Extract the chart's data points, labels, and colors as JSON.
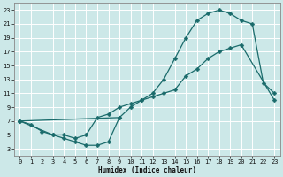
{
  "xlabel": "Humidex (Indice chaleur)",
  "bg_color": "#cce8e8",
  "grid_color": "#ffffff",
  "line_color": "#1a6b6b",
  "xlim": [
    -0.5,
    23.5
  ],
  "ylim": [
    2,
    24
  ],
  "xticks": [
    0,
    1,
    2,
    3,
    4,
    5,
    6,
    7,
    8,
    9,
    10,
    11,
    12,
    13,
    14,
    15,
    16,
    17,
    18,
    19,
    20,
    21,
    22,
    23
  ],
  "yticks": [
    3,
    5,
    7,
    9,
    11,
    13,
    15,
    17,
    19,
    21,
    23
  ],
  "curve_top_x": [
    0,
    9,
    10,
    11,
    12,
    13,
    14,
    15,
    16,
    17,
    18,
    19,
    20,
    21,
    22,
    23
  ],
  "curve_top_y": [
    7,
    7.5,
    9,
    10,
    11,
    13,
    16,
    19,
    21.5,
    22.5,
    23,
    22.5,
    21.5,
    21,
    12.5,
    11
  ],
  "curve_mid_x": [
    0,
    3,
    4,
    5,
    6,
    7,
    8,
    9,
    10,
    11,
    12,
    13,
    14,
    15,
    16,
    17,
    18,
    19,
    20,
    23
  ],
  "curve_mid_y": [
    7,
    5,
    5,
    4.5,
    5,
    7.5,
    8,
    9,
    9.5,
    10,
    10.5,
    11,
    11.5,
    13.5,
    14.5,
    16,
    17,
    17.5,
    18,
    10
  ],
  "curve_bot_x": [
    0,
    1,
    2,
    3,
    4,
    5,
    6,
    7,
    8,
    9
  ],
  "curve_bot_y": [
    7,
    6.5,
    5.5,
    5,
    4.5,
    4,
    3.5,
    3.5,
    4,
    7.5
  ],
  "markersize": 2.5,
  "linewidth": 0.9
}
